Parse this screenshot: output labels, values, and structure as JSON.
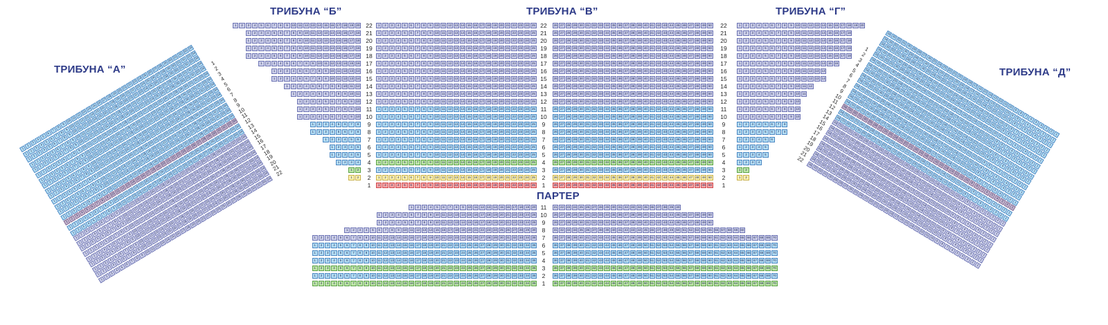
{
  "sections": {
    "a": "ТРИБУНА “А”",
    "b": "ТРИБУНА “Б”",
    "v": "ТРИБУНА “В”",
    "g": "ТРИБУНА “Г”",
    "d": "ТРИБУНА “Д”",
    "parter": "ПАРТЕР"
  },
  "colors": {
    "title": "#2e3b88",
    "blue": "#b4def4",
    "lavender": "#cdd0ea",
    "green": "#bfe6a8",
    "yellow": "#fbf2b2",
    "red": "#f5a5a5",
    "mauve": "#c3b3cc"
  },
  "tribuna_b": {
    "rows": [
      {
        "row": 22,
        "seats": 20,
        "color": "lavender"
      },
      {
        "row": 21,
        "seats": 18,
        "color": "lavender"
      },
      {
        "row": 20,
        "seats": 18,
        "color": "lavender"
      },
      {
        "row": 19,
        "seats": 18,
        "color": "lavender"
      },
      {
        "row": 18,
        "seats": 18,
        "color": "lavender"
      },
      {
        "row": 17,
        "seats": 16,
        "color": "lavender"
      },
      {
        "row": 16,
        "seats": 14,
        "color": "lavender"
      },
      {
        "row": 15,
        "seats": 14,
        "color": "lavender"
      },
      {
        "row": 14,
        "seats": 12,
        "color": "lavender"
      },
      {
        "row": 13,
        "seats": 11,
        "color": "lavender"
      },
      {
        "row": 12,
        "seats": 10,
        "color": "lavender"
      },
      {
        "row": 11,
        "seats": 10,
        "color": "lavender"
      },
      {
        "row": 10,
        "seats": 10,
        "color": "lavender"
      },
      {
        "row": 9,
        "seats": 8,
        "color": "blue"
      },
      {
        "row": 8,
        "seats": 8,
        "color": "blue"
      },
      {
        "row": 7,
        "seats": 6,
        "color": "blue"
      },
      {
        "row": 6,
        "seats": 5,
        "color": "blue"
      },
      {
        "row": 5,
        "seats": 5,
        "color": "blue"
      },
      {
        "row": 4,
        "seats": 4,
        "color": "blue"
      },
      {
        "row": 3,
        "seats": 2,
        "color": "green"
      },
      {
        "row": 2,
        "seats": 2,
        "color": "yellow"
      }
    ]
  },
  "tribuna_v": {
    "left": [
      {
        "row": 22,
        "seats": 25,
        "color": "lavender"
      },
      {
        "row": 21,
        "seats": 25,
        "color": "lavender"
      },
      {
        "row": 20,
        "seats": 25,
        "color": "lavender"
      },
      {
        "row": 19,
        "seats": 25,
        "color": "lavender"
      },
      {
        "row": 18,
        "seats": 25,
        "color": "lavender"
      },
      {
        "row": 17,
        "seats": 25,
        "color": "lavender"
      },
      {
        "row": 16,
        "seats": 25,
        "color": "lavender"
      },
      {
        "row": 15,
        "seats": 25,
        "color": "lavender"
      },
      {
        "row": 14,
        "seats": 25,
        "color": "lavender"
      },
      {
        "row": 13,
        "seats": 25,
        "color": "lavender"
      },
      {
        "row": 12,
        "seats": 25,
        "color": "lavender"
      },
      {
        "row": 11,
        "seats": 25,
        "color": "blue"
      },
      {
        "row": 10,
        "seats": 25,
        "color": "blue"
      },
      {
        "row": 9,
        "seats": 25,
        "color": "blue"
      },
      {
        "row": 8,
        "seats": 25,
        "color": "blue"
      },
      {
        "row": 7,
        "seats": 25,
        "color": "blue"
      },
      {
        "row": 6,
        "seats": 25,
        "color": "blue"
      },
      {
        "row": 5,
        "seats": 25,
        "color": "blue"
      },
      {
        "row": 4,
        "seats": 25,
        "color": "green"
      },
      {
        "row": 3,
        "seats": 25,
        "color": "blue"
      },
      {
        "row": 2,
        "seats": 25,
        "color": "yellow"
      },
      {
        "row": 1,
        "seats": 25,
        "color": "red"
      }
    ],
    "right_start": 26,
    "right_end": 50
  },
  "tribuna_g": {
    "rows": [
      {
        "row": 22,
        "seats": 20,
        "color": "lavender"
      },
      {
        "row": 21,
        "seats": 18,
        "color": "lavender"
      },
      {
        "row": 20,
        "seats": 18,
        "color": "lavender"
      },
      {
        "row": 19,
        "seats": 18,
        "color": "lavender"
      },
      {
        "row": 18,
        "seats": 18,
        "color": "lavender"
      },
      {
        "row": 17,
        "seats": 16,
        "color": "lavender"
      },
      {
        "row": 16,
        "seats": 14,
        "color": "lavender"
      },
      {
        "row": 15,
        "seats": 14,
        "color": "lavender"
      },
      {
        "row": 14,
        "seats": 12,
        "color": "lavender"
      },
      {
        "row": 13,
        "seats": 11,
        "color": "lavender"
      },
      {
        "row": 12,
        "seats": 10,
        "color": "lavender"
      },
      {
        "row": 11,
        "seats": 10,
        "color": "lavender"
      },
      {
        "row": 10,
        "seats": 10,
        "color": "lavender"
      },
      {
        "row": 9,
        "seats": 8,
        "color": "blue"
      },
      {
        "row": 8,
        "seats": 8,
        "color": "blue"
      },
      {
        "row": 7,
        "seats": 6,
        "color": "blue"
      },
      {
        "row": 6,
        "seats": 5,
        "color": "blue"
      },
      {
        "row": 5,
        "seats": 5,
        "color": "blue"
      },
      {
        "row": 4,
        "seats": 4,
        "color": "blue"
      },
      {
        "row": 3,
        "seats": 2,
        "color": "green"
      },
      {
        "row": 2,
        "seats": 2,
        "color": "yellow"
      },
      {
        "row": 1,
        "seats": 0,
        "color": "blue"
      }
    ]
  },
  "parter": {
    "rows": [
      {
        "row": 11,
        "left_start": 1,
        "left_end": 20,
        "right_start": 21,
        "right_end": 40,
        "color": "lavender"
      },
      {
        "row": 10,
        "left_start": 1,
        "left_end": 25,
        "right_start": 26,
        "right_end": 50,
        "color": "lavender"
      },
      {
        "row": 9,
        "left_start": 1,
        "left_end": 25,
        "right_start": 26,
        "right_end": 50,
        "color": "lavender"
      },
      {
        "row": 8,
        "left_start": 1,
        "left_end": 30,
        "right_start": 31,
        "right_end": 60,
        "color": "lavender"
      },
      {
        "row": 7,
        "left_start": 1,
        "left_end": 35,
        "right_start": 36,
        "right_end": 70,
        "color": "lavender"
      },
      {
        "row": 6,
        "left_start": 1,
        "left_end": 35,
        "right_start": 36,
        "right_end": 70,
        "color": "blue"
      },
      {
        "row": 5,
        "left_start": 1,
        "left_end": 35,
        "right_start": 36,
        "right_end": 70,
        "color": "blue"
      },
      {
        "row": 4,
        "left_start": 1,
        "left_end": 35,
        "right_start": 36,
        "right_end": 70,
        "color": "blue"
      },
      {
        "row": 3,
        "left_start": 1,
        "left_end": 35,
        "right_start": 36,
        "right_end": 70,
        "color": "green"
      },
      {
        "row": 2,
        "left_start": 1,
        "left_end": 35,
        "right_start": 36,
        "right_end": 70,
        "color": "blue"
      },
      {
        "row": 1,
        "left_start": 1,
        "left_end": 35,
        "right_start": 36,
        "right_end": 70,
        "color": "green"
      }
    ]
  },
  "tribuna_a": {
    "row_labels": [
      "22",
      "21",
      "20",
      "19",
      "18",
      "17",
      "16",
      "15",
      "14",
      "13",
      "12",
      "11",
      "10",
      "9",
      "8",
      "7",
      "6",
      "5",
      "4",
      "3",
      "2",
      "1"
    ],
    "rows": 26,
    "seats": 34
  },
  "tribuna_d": {
    "row_labels": [
      "22",
      "21",
      "20",
      "19",
      "18",
      "17",
      "16",
      "15",
      "14",
      "13",
      "12",
      "11",
      "10",
      "9",
      "8",
      "7",
      "6",
      "5",
      "4",
      "3",
      "2",
      "1"
    ],
    "rows": 26,
    "seats": 34
  }
}
